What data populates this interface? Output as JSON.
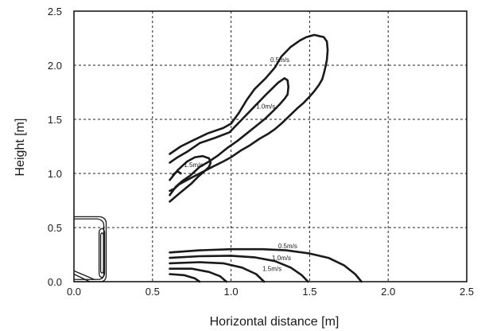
{
  "chart_data": {
    "type": "line",
    "title": "",
    "xlabel": "Horizontal distance [m]",
    "ylabel": "Height [m]",
    "xlim": [
      0.0,
      2.5
    ],
    "ylim": [
      0.0,
      2.5
    ],
    "xticks": [
      "0.0",
      "0.5",
      "1.0",
      "1.5",
      "2.0",
      "2.5"
    ],
    "yticks": [
      "0.0",
      "0.5",
      "1.0",
      "1.5",
      "2.0",
      "2.5"
    ],
    "grid": true,
    "grid_style": "dashed",
    "device_icon": "air-conditioner-outline",
    "series": [
      {
        "group": "upper",
        "label": "0.5m/s",
        "x": [
          0.61,
          0.68,
          0.75,
          0.85,
          0.95,
          1.0,
          1.05,
          1.1,
          1.15,
          1.22,
          1.28,
          1.32,
          1.38,
          1.44,
          1.48,
          1.53,
          1.56,
          1.59,
          1.61,
          1.615,
          1.61,
          1.6,
          1.59,
          1.58,
          1.56,
          1.53,
          1.5,
          1.46,
          1.42,
          1.37,
          1.32,
          1.28,
          1.24,
          1.18,
          1.12,
          1.06,
          1.0,
          0.95,
          0.88,
          0.8,
          0.72,
          0.67,
          0.64,
          0.61
        ],
        "y": [
          1.18,
          1.25,
          1.3,
          1.37,
          1.42,
          1.46,
          1.56,
          1.68,
          1.78,
          1.88,
          1.98,
          2.08,
          2.17,
          2.23,
          2.26,
          2.28,
          2.27,
          2.26,
          2.22,
          2.14,
          2.05,
          1.98,
          1.92,
          1.87,
          1.82,
          1.76,
          1.71,
          1.65,
          1.6,
          1.53,
          1.46,
          1.41,
          1.37,
          1.32,
          1.26,
          1.21,
          1.15,
          1.11,
          1.06,
          1.0,
          0.94,
          0.9,
          0.86,
          0.84
        ]
      },
      {
        "group": "upper",
        "label": "1.0m/s",
        "x": [
          0.61,
          0.66,
          0.72,
          0.8,
          0.9,
          0.99,
          1.07,
          1.15,
          1.23,
          1.3,
          1.34,
          1.36,
          1.365,
          1.36,
          1.34,
          1.31,
          1.27,
          1.22,
          1.16,
          1.1,
          1.04,
          0.98,
          0.92,
          0.86,
          0.8,
          0.74,
          0.69,
          0.65,
          0.61
        ],
        "y": [
          1.1,
          1.15,
          1.2,
          1.28,
          1.33,
          1.38,
          1.5,
          1.62,
          1.74,
          1.84,
          1.88,
          1.86,
          1.8,
          1.73,
          1.69,
          1.64,
          1.58,
          1.51,
          1.44,
          1.37,
          1.3,
          1.24,
          1.17,
          1.11,
          1.06,
          0.98,
          0.93,
          0.88,
          0.8
        ]
      },
      {
        "group": "upper",
        "label": "1.5m/s",
        "x": [
          0.61,
          0.66,
          0.72,
          0.77,
          0.82,
          0.86,
          0.87,
          0.86,
          0.83,
          0.79,
          0.75,
          0.7,
          0.65,
          0.61
        ],
        "y": [
          0.94,
          1.03,
          1.11,
          1.15,
          1.16,
          1.14,
          1.1,
          1.06,
          1.02,
          0.97,
          0.91,
          0.85,
          0.79,
          0.74
        ]
      },
      {
        "group": "upper",
        "label": "",
        "x": [
          0.63,
          0.66,
          0.68
        ],
        "y": [
          0.99,
          1.02,
          1.0
        ]
      },
      {
        "group": "lower",
        "label": "0.5m/s",
        "x": [
          0.61,
          0.8,
          1.0,
          1.2,
          1.35,
          1.5,
          1.62,
          1.72,
          1.79,
          1.83
        ],
        "y": [
          0.27,
          0.29,
          0.3,
          0.3,
          0.29,
          0.26,
          0.22,
          0.15,
          0.07,
          0.0
        ]
      },
      {
        "group": "lower",
        "label": "1.0m/s",
        "x": [
          0.61,
          0.8,
          1.0,
          1.15,
          1.28,
          1.38,
          1.45,
          1.49
        ],
        "y": [
          0.22,
          0.235,
          0.24,
          0.225,
          0.19,
          0.13,
          0.06,
          0.0
        ]
      },
      {
        "group": "lower",
        "label": "1.5m/s",
        "x": [
          0.61,
          0.8,
          0.95,
          1.07,
          1.16,
          1.21
        ],
        "y": [
          0.17,
          0.18,
          0.17,
          0.13,
          0.07,
          0.0
        ]
      },
      {
        "group": "lower",
        "label": "",
        "x": [
          0.61,
          0.75,
          0.86,
          0.93,
          0.97
        ],
        "y": [
          0.12,
          0.12,
          0.09,
          0.05,
          0.0
        ]
      },
      {
        "group": "lower",
        "label": "",
        "x": [
          0.61,
          0.7,
          0.77,
          0.8
        ],
        "y": [
          0.07,
          0.06,
          0.03,
          0.0
        ]
      }
    ],
    "contour_labels": [
      {
        "text": "0.5m/s",
        "x": 1.25,
        "y": 2.03
      },
      {
        "text": "1.0m/s",
        "x": 1.16,
        "y": 1.6
      },
      {
        "text": "1.5m/s",
        "x": 0.7,
        "y": 1.06
      },
      {
        "text": "0.5m/s",
        "x": 1.3,
        "y": 0.31
      },
      {
        "text": "1.0m/s",
        "x": 1.26,
        "y": 0.2
      },
      {
        "text": "1.5m/s",
        "x": 1.2,
        "y": 0.1
      }
    ]
  }
}
